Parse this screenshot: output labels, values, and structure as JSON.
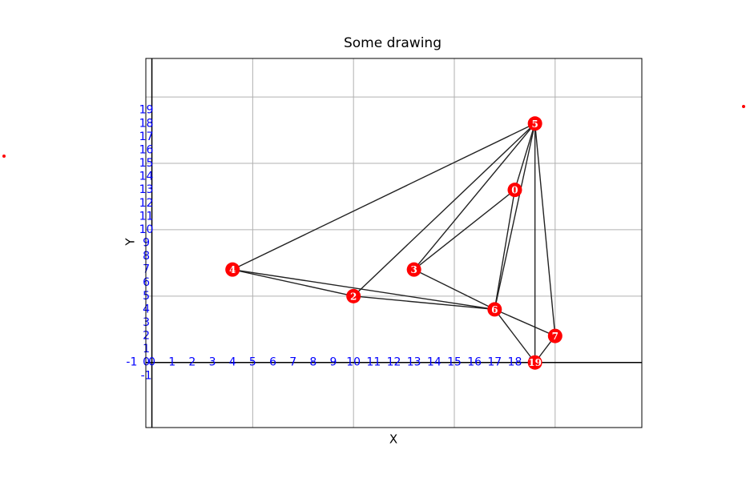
{
  "chart_data": {
    "type": "graph",
    "title": "Some drawing",
    "xlabel": "X",
    "ylabel": "Y",
    "xlim": [
      -0.3,
      24.3
    ],
    "ylim": [
      -4.9,
      22.9
    ],
    "xticks": [
      0,
      5,
      10,
      15,
      20
    ],
    "yticks": [
      0,
      5,
      10,
      15,
      20
    ],
    "grid": true,
    "hline": 0,
    "vline": 0,
    "x_labels": [
      -1,
      0,
      1,
      2,
      3,
      4,
      5,
      6,
      7,
      8,
      9,
      10,
      11,
      12,
      13,
      14,
      15,
      16,
      17,
      18,
      19
    ],
    "y_labels": [
      -1,
      0,
      1,
      2,
      3,
      4,
      5,
      6,
      7,
      8,
      9,
      10,
      11,
      12,
      13,
      14,
      15,
      16,
      17,
      18,
      19
    ],
    "label_color": "#0000ff",
    "node_color": "#ff0000",
    "edge_color": "#222222",
    "nodes": [
      {
        "label": "0",
        "x": 18,
        "y": 13
      },
      {
        "label": "2",
        "x": 10,
        "y": 5
      },
      {
        "label": "3",
        "x": 13,
        "y": 7
      },
      {
        "label": "4",
        "x": 4,
        "y": 7
      },
      {
        "label": "5",
        "x": 19,
        "y": 18
      },
      {
        "label": "6",
        "x": 17,
        "y": 4
      },
      {
        "label": "7",
        "x": 20,
        "y": 2
      },
      {
        "label": "19",
        "x": 19,
        "y": 0
      }
    ],
    "edges": [
      [
        4,
        3
      ],
      [
        4,
        1
      ],
      [
        4,
        2
      ],
      [
        4,
        0
      ],
      [
        4,
        5
      ],
      [
        4,
        7
      ],
      [
        4,
        6
      ],
      [
        0,
        2
      ],
      [
        0,
        5
      ],
      [
        3,
        5
      ],
      [
        3,
        1
      ],
      [
        1,
        5
      ],
      [
        2,
        5
      ],
      [
        5,
        6
      ],
      [
        5,
        7
      ],
      [
        7,
        6
      ]
    ]
  }
}
